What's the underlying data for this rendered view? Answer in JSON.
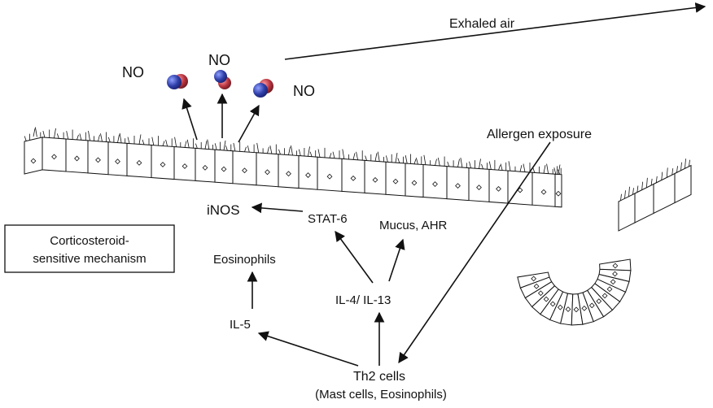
{
  "labels": {
    "exhaled_air": "Exhaled air",
    "no_1": "NO",
    "no_2": "NO",
    "no_3": "NO",
    "allergen_exposure": "Allergen exposure",
    "inos": "iNOS",
    "stat6": "STAT-6",
    "mucus_ahr": "Mucus, AHR",
    "eosinophils": "Eosinophils",
    "il4_il13": "IL-4/ IL-13",
    "il5": "IL-5",
    "th2_cells": "Th2 cells",
    "th2_cells_sub": "(Mast cells, Eosinophils)"
  },
  "box": {
    "line1": "Corticosteroid-",
    "line2": "sensitive mechanism"
  },
  "colors": {
    "no_molecule_blue": "#2f3fa8",
    "no_molecule_red": "#b8343f",
    "line": "#111111"
  }
}
